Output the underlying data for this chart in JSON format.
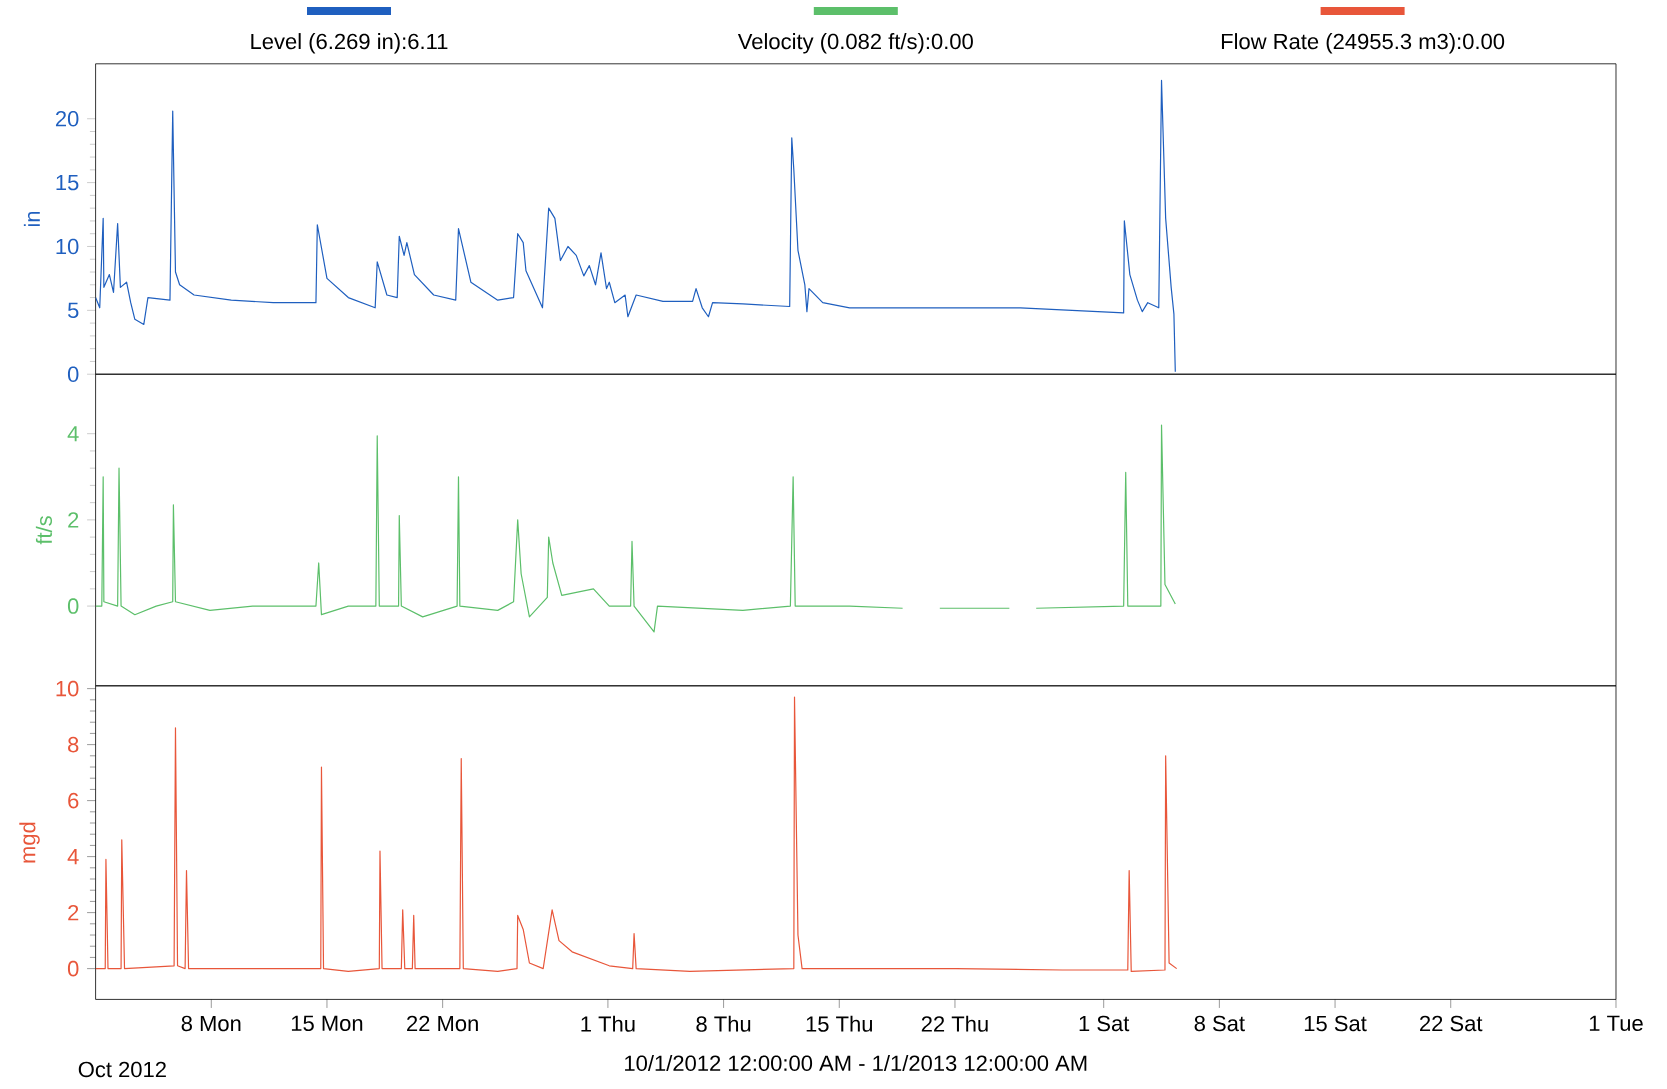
{
  "chart_data": [
    {
      "type": "line",
      "ylabel": "in",
      "legend": "top",
      "tick_labels": "y",
      "xlim": [
        "2012-10-01",
        "2013-01-01"
      ],
      "ylim": [
        0,
        24.3
      ],
      "yticks": [
        0,
        5,
        10,
        15,
        20
      ],
      "x": [
        "2012-10-01T00:00",
        "2012-10-01T06:00",
        "2012-10-01T11:00",
        "2012-10-01T12:00",
        "2012-10-01T20:00",
        "2012-10-02T02:00",
        "2012-10-02T08:00",
        "2012-10-02T12:00",
        "2012-10-02T21:00",
        "2012-10-03T03:00",
        "2012-10-03T09:00",
        "2012-10-03T22:00",
        "2012-10-04T04:00",
        "2012-10-05T12:00",
        "2012-10-05T16:00",
        "2012-10-05T20:00",
        "2012-10-06T02:00",
        "2012-10-06T23:00",
        "2012-10-09T05:00",
        "2012-10-11T18:00",
        "2012-10-14T08:00",
        "2012-10-14T10:00",
        "2012-10-15T00:00",
        "2012-10-16T07:00",
        "2012-10-17T22:00",
        "2012-10-18T01:00",
        "2012-10-18T15:00",
        "2012-10-19T06:00",
        "2012-10-19T09:00",
        "2012-10-19T16:00",
        "2012-10-19T20:00",
        "2012-10-20T07:00",
        "2012-10-21T11:00",
        "2012-10-22T19:00",
        "2012-10-22T23:00",
        "2012-10-23T17:00",
        "2012-10-25T08:00",
        "2012-10-26T07:00",
        "2012-10-26T13:00",
        "2012-10-26T21:00",
        "2012-10-27T01:00",
        "2012-10-28T01:00",
        "2012-10-28T10:00",
        "2012-10-28T19:00",
        "2012-10-29T03:00",
        "2012-10-29T14:00",
        "2012-10-30T02:00",
        "2012-10-30T13:00",
        "2012-10-30T21:00",
        "2012-10-31T06:00",
        "2012-10-31T14:00",
        "2012-10-31T22:00",
        "2012-11-01T02:00",
        "2012-11-01T10:00",
        "2012-11-02T01:00",
        "2012-11-02T05:00",
        "2012-11-02T17:00",
        "2012-11-04T08:00",
        "2012-11-06T03:00",
        "2012-11-06T08:00",
        "2012-11-06T17:00",
        "2012-11-07T02:00",
        "2012-11-07T08:00",
        "2012-11-09T04:00",
        "2012-11-12T00:00",
        "2012-11-12T03:00",
        "2012-11-12T06:00",
        "2012-11-12T12:00",
        "2012-11-12T22:00",
        "2012-11-13T01:00",
        "2012-11-13T04:00",
        "2012-11-14T00:00",
        "2012-11-15T15:00",
        "2012-11-22T01:00",
        "2012-11-25T23:00",
        "2012-12-02T05:00",
        "2012-12-02T06:00",
        "2012-12-02T14:00",
        "2012-12-03T01:00",
        "2012-12-03T08:00",
        "2012-12-03T16:00",
        "2012-12-04T08:00",
        "2012-12-04T12:00",
        "2012-12-04T18:00",
        "2012-12-05T02:00",
        "2012-12-05T06:00",
        "2012-12-05T08:00"
      ],
      "series": [
        {
          "name": "Level (6.269 in):6.11",
          "color": "#1f5fbf",
          "values": [
            6.0,
            5.2,
            12.2,
            6.8,
            7.8,
            6.4,
            11.8,
            6.8,
            7.2,
            5.6,
            4.3,
            3.9,
            6.0,
            5.8,
            20.6,
            8.0,
            7.0,
            6.2,
            5.8,
            5.6,
            5.6,
            11.7,
            7.5,
            6.0,
            5.2,
            8.8,
            6.2,
            6.0,
            10.8,
            9.3,
            10.3,
            7.8,
            6.2,
            5.8,
            11.4,
            7.2,
            5.8,
            6.0,
            11.0,
            10.3,
            8.1,
            5.2,
            13.0,
            12.2,
            8.9,
            10.0,
            9.3,
            7.7,
            8.5,
            7.0,
            9.5,
            6.7,
            7.2,
            5.6,
            6.2,
            4.5,
            6.2,
            5.7,
            5.7,
            6.7,
            5.2,
            4.5,
            5.6,
            5.5,
            5.3,
            18.5,
            16.0,
            9.7,
            7.0,
            4.9,
            6.7,
            5.6,
            5.2,
            5.2,
            5.2,
            4.8,
            12.0,
            7.8,
            5.8,
            4.9,
            5.6,
            5.2,
            23.0,
            12.2,
            6.8,
            4.7,
            0.2
          ]
        }
      ]
    },
    {
      "type": "line",
      "ylabel": "ft/s",
      "legend": "top",
      "tick_labels": "y",
      "xlim": [
        "2012-10-01",
        "2013-01-01"
      ],
      "ylim": [
        -1.85,
        5.38
      ],
      "yticks": [
        0,
        2,
        4
      ],
      "x": [
        "2012-10-01T00:00",
        "2012-10-01T09:00",
        "2012-10-01T11:00",
        "2012-10-01T12:00",
        "2012-10-02T08:00",
        "2012-10-02T10:00",
        "2012-10-02T13:00",
        "2012-10-03T09:00",
        "2012-10-04T16:00",
        "2012-10-05T16:00",
        "2012-10-05T17:00",
        "2012-10-05T20:00",
        "2012-10-07T22:00",
        "2012-10-10T12:00",
        "2012-10-14T08:00",
        "2012-10-14T12:00",
        "2012-10-14T16:00",
        "2012-10-16T07:00",
        "2012-10-17T23:00",
        "2012-10-18T01:00",
        "2012-10-18T04:00",
        "2012-10-19T08:00",
        "2012-10-19T09:00",
        "2012-10-19T12:00",
        "2012-10-20T19:00",
        "2012-10-22T21:00",
        "2012-10-22T23:00",
        "2012-10-23T01:00",
        "2012-10-25T08:00",
        "2012-10-26T07:00",
        "2012-10-26T13:00",
        "2012-10-26T18:00",
        "2012-10-27T06:00",
        "2012-10-28T08:00",
        "2012-10-28T10:00",
        "2012-10-28T16:00",
        "2012-10-29T05:00",
        "2012-10-31T03:00",
        "2012-11-01T02:00",
        "2012-11-02T09:00",
        "2012-11-02T11:00",
        "2012-11-02T14:00",
        "2012-11-03T19:00",
        "2012-11-04T00:00",
        "2012-11-09T04:00",
        "2012-11-12T01:00",
        "2012-11-12T05:00",
        "2012-11-12T08:00",
        "2012-11-15T15:00",
        "2012-11-18T20:00",
        "2012-11-20T00:00",
        "2012-11-21T02:00",
        "2012-11-22T01:00",
        "2012-11-25T07:00",
        "2012-11-26T00:00",
        "2012-11-26T22:00",
        "2012-12-02T05:00",
        "2012-12-02T08:00",
        "2012-12-02T11:00",
        "2012-12-04T11:00",
        "2012-12-04T12:00",
        "2012-12-04T17:00",
        "2012-12-05T08:00"
      ],
      "series": [
        {
          "name": "Velocity (0.082 ft/s):0.00",
          "color": "#5cbf6a",
          "values": [
            0,
            0,
            3.0,
            0.1,
            0,
            3.2,
            0,
            -0.2,
            0,
            0.1,
            2.35,
            0.1,
            -0.1,
            0,
            0,
            1.0,
            -0.2,
            0,
            0,
            3.95,
            0,
            0,
            2.1,
            0,
            -0.25,
            0,
            3.0,
            0,
            -0.1,
            0.1,
            2.0,
            0.75,
            -0.25,
            0.2,
            1.6,
            1.0,
            0.25,
            0.4,
            0,
            0,
            1.5,
            0,
            -0.6,
            0,
            -0.1,
            0,
            3.0,
            0,
            0,
            -0.05,
            null,
            -0.05,
            -0.05,
            -0.05,
            null,
            -0.05,
            0,
            3.1,
            0,
            0,
            4.2,
            0.5,
            0.05
          ]
        }
      ]
    },
    {
      "type": "line",
      "ylabel": "mgd",
      "xlabel": "10/1/2012 12:00:00 AM - 1/1/2013 12:00:00 AM",
      "annotations": [
        "Oct 2012"
      ],
      "legend": "top",
      "xlim": [
        "2012-10-01",
        "2013-01-01"
      ],
      "ylim": [
        -1.1,
        10.1
      ],
      "yticks": [
        0,
        2,
        4,
        6,
        8,
        10
      ],
      "xticks": [
        {
          "value": "2012-10-08",
          "label": "8 Mon"
        },
        {
          "value": "2012-10-15",
          "label": "15 Mon"
        },
        {
          "value": "2012-10-22",
          "label": "22 Mon"
        },
        {
          "value": "2012-11-01",
          "label": "1 Thu"
        },
        {
          "value": "2012-11-08",
          "label": "8 Thu"
        },
        {
          "value": "2012-11-15",
          "label": "15 Thu"
        },
        {
          "value": "2012-11-22",
          "label": "22 Thu"
        },
        {
          "value": "2012-12-01",
          "label": "1 Sat"
        },
        {
          "value": "2012-12-08",
          "label": "8 Sat"
        },
        {
          "value": "2012-12-15",
          "label": "15 Sat"
        },
        {
          "value": "2012-12-22",
          "label": "22 Sat"
        },
        {
          "value": "2013-01-01",
          "label": "1 Tue"
        }
      ],
      "x": [
        "2012-10-01T00:00",
        "2012-10-01T14:00",
        "2012-10-01T15:00",
        "2012-10-01T18:00",
        "2012-10-02T13:00",
        "2012-10-02T14:00",
        "2012-10-02T18:00",
        "2012-10-05T18:00",
        "2012-10-05T20:00",
        "2012-10-05T23:00",
        "2012-10-06T10:00",
        "2012-10-06T12:00",
        "2012-10-06T15:00",
        "2012-10-11T03:00",
        "2012-10-14T15:00",
        "2012-10-14T16:00",
        "2012-10-14T19:00",
        "2012-10-16T07:00",
        "2012-10-18T04:00",
        "2012-10-18T05:00",
        "2012-10-18T08:00",
        "2012-10-19T12:00",
        "2012-10-19T14:00",
        "2012-10-19T17:00",
        "2012-10-20T04:00",
        "2012-10-20T06:00",
        "2012-10-20T08:00",
        "2012-10-23T01:00",
        "2012-10-23T03:00",
        "2012-10-23T06:00",
        "2012-10-25T08:00",
        "2012-10-26T12:00",
        "2012-10-26T13:00",
        "2012-10-26T21:00",
        "2012-10-27T06:00",
        "2012-10-28T02:00",
        "2012-10-28T15:00",
        "2012-10-29T01:00",
        "2012-10-29T20:00",
        "2012-11-01T02:00",
        "2012-11-02T12:00",
        "2012-11-02T14:00",
        "2012-11-02T17:00",
        "2012-11-05T23:00",
        "2012-11-12T06:00",
        "2012-11-12T07:00",
        "2012-11-12T12:00",
        "2012-11-12T18:00",
        "2012-11-22T01:00",
        "2012-11-28T12:00",
        "2012-12-02T11:00",
        "2012-12-02T13:00",
        "2012-12-02T16:00",
        "2012-12-04T17:00",
        "2012-12-04T18:00",
        "2012-12-04T23:00",
        "2012-12-05T10:00"
      ],
      "series": [
        {
          "name": "Flow Rate (24955.3 m3):0.00",
          "color": "#e8563a",
          "values": [
            0,
            0,
            3.9,
            0,
            0,
            4.6,
            0,
            0.1,
            8.6,
            0.1,
            0,
            3.5,
            0,
            0,
            0,
            7.2,
            0,
            -0.1,
            0,
            4.2,
            0,
            0,
            2.1,
            0,
            0,
            1.9,
            0,
            0,
            7.5,
            0,
            -0.1,
            0,
            1.9,
            1.4,
            0.2,
            0,
            2.1,
            1.0,
            0.6,
            0.1,
            0,
            1.25,
            0,
            -0.1,
            0,
            9.7,
            1.2,
            0,
            0,
            -0.05,
            -0.05,
            3.5,
            -0.1,
            -0.05,
            7.6,
            0.2,
            0
          ]
        }
      ]
    }
  ]
}
